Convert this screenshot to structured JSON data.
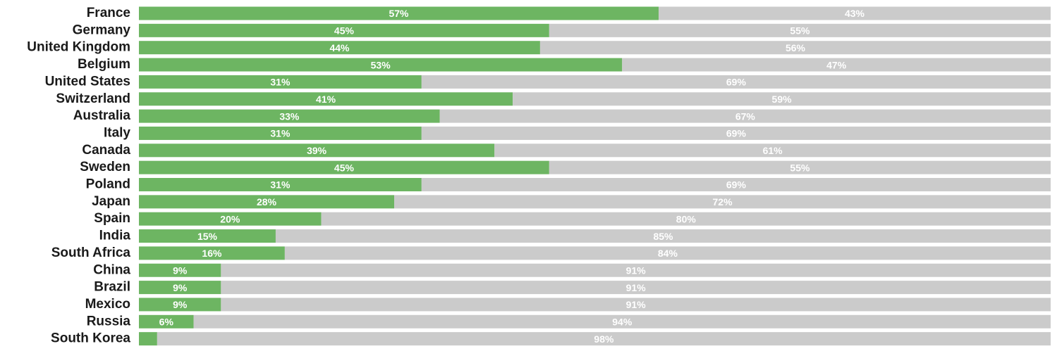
{
  "colors": {
    "primary": "#6db562",
    "remainder": "#cbcbcb",
    "value_label": "#ffffff",
    "category_label": "#1a1a1a"
  },
  "chart_data": {
    "type": "bar",
    "orientation": "horizontal",
    "stacked": true,
    "percent_stacked": true,
    "categories": [
      "France",
      "Germany",
      "United Kingdom",
      "Belgium",
      "United States",
      "Switzerland",
      "Australia",
      "Italy",
      "Canada",
      "Sweden",
      "Poland",
      "Japan",
      "Spain",
      "India",
      "South Africa",
      "China",
      "Brazil",
      "Mexico",
      "Russia",
      "South Korea"
    ],
    "series": [
      {
        "color": "#6db562",
        "values": [
          57,
          45,
          44,
          53,
          31,
          41,
          33,
          31,
          39,
          45,
          31,
          28,
          20,
          15,
          16,
          9,
          9,
          9,
          6,
          2
        ],
        "labels": [
          "57%",
          "45%",
          "44%",
          "53%",
          "31%",
          "41%",
          "33%",
          "31%",
          "39%",
          "45%",
          "31%",
          "28%",
          "20%",
          "15%",
          "16%",
          "9%",
          "9%",
          "9%",
          "6%",
          ""
        ]
      },
      {
        "color": "#cbcbcb",
        "values": [
          43,
          55,
          56,
          47,
          69,
          59,
          67,
          69,
          61,
          55,
          69,
          72,
          80,
          85,
          84,
          91,
          91,
          91,
          94,
          98
        ],
        "labels": [
          "43%",
          "55%",
          "56%",
          "47%",
          "69%",
          "59%",
          "67%",
          "69%",
          "61%",
          "55%",
          "69%",
          "72%",
          "80%",
          "85%",
          "84%",
          "91%",
          "91%",
          "91%",
          "94%",
          "98%"
        ]
      }
    ],
    "xlim": [
      0,
      100
    ],
    "grid": false,
    "legend": "none",
    "title": "",
    "xlabel": "",
    "ylabel": ""
  }
}
